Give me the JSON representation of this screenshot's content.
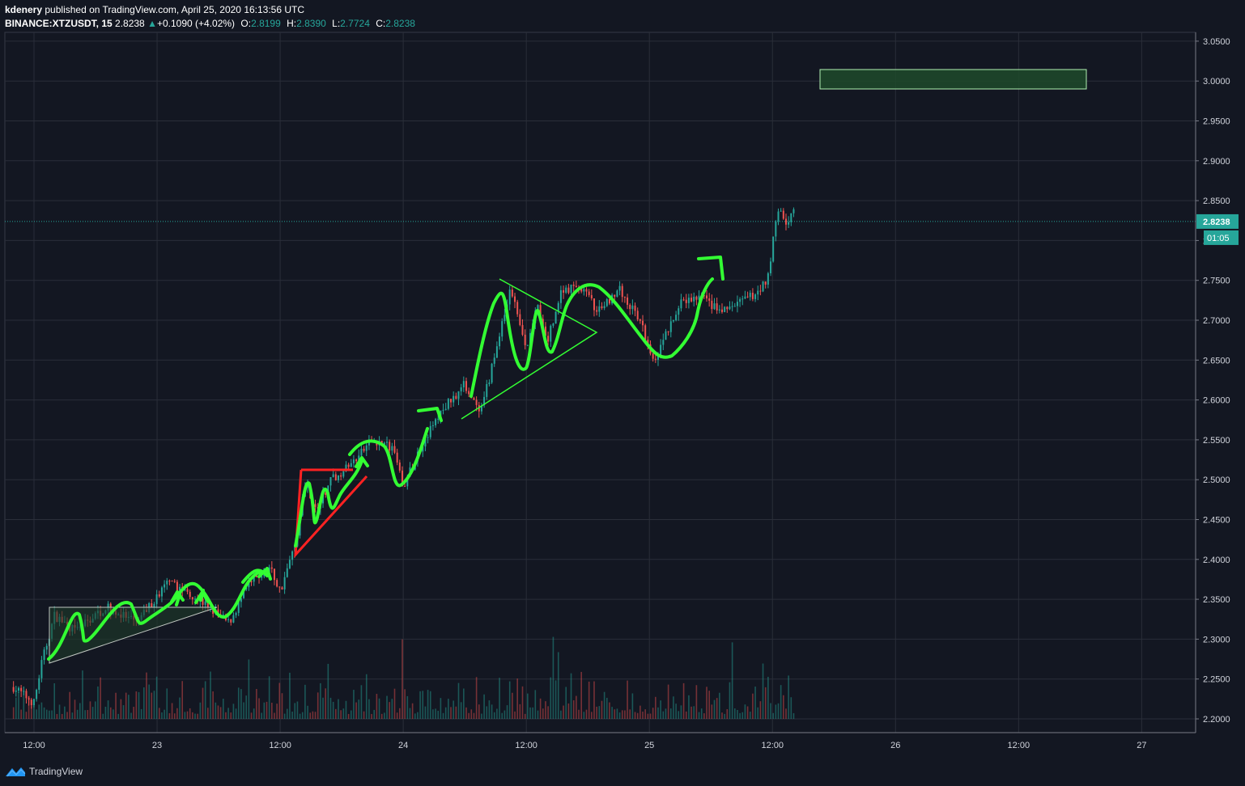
{
  "header": {
    "author": "kdenery",
    "published_text": "published on TradingView.com, April 25, 2020 16:13:56 UTC",
    "symbol": "BINANCE:XTZUSDT, 15",
    "last": "2.8238",
    "change_arrow": "▲",
    "change": "+0.1090 (+4.02%)",
    "o_label": "O:",
    "o": "2.8199",
    "h_label": "H:",
    "h": "2.8390",
    "l_label": "L:",
    "l": "2.7724",
    "c_label": "C:",
    "c": "2.8238"
  },
  "footer": {
    "brand": "TradingView",
    "logo_icon": "tradingview-logo-icon"
  },
  "colors": {
    "background": "#131722",
    "grid": "#2a2e39",
    "up": "#26a69a",
    "down": "#ef5350",
    "drawing_green": "#33ff33",
    "drawing_red": "#ff2222",
    "text": "#d1d4dc"
  },
  "chart_data": {
    "type": "candlestick",
    "ylim": [
      2.18,
      3.06
    ],
    "y_ticks": [
      "3.0500",
      "3.0000",
      "2.9500",
      "2.9000",
      "2.8500",
      "2.8000",
      "2.7500",
      "2.7000",
      "2.6500",
      "2.6000",
      "2.5500",
      "2.5000",
      "2.4500",
      "2.4000",
      "2.3500",
      "2.3000",
      "2.2500",
      "2.2000"
    ],
    "x_ticks": [
      "12:00",
      "23",
      "12:00",
      "24",
      "12:00",
      "25",
      "12:00",
      "26",
      "12:00",
      "27"
    ],
    "x_tick_times": [
      "2020-04-22 12:00",
      "2020-04-23 00:00",
      "2020-04-23 12:00",
      "2020-04-24 00:00",
      "2020-04-24 12:00",
      "2020-04-25 00:00",
      "2020-04-25 12:00",
      "2020-04-26 00:00",
      "2020-04-26 12:00",
      "2020-04-27 00:00"
    ],
    "current_price": "2.8238",
    "countdown": "01:05",
    "price_path": [
      {
        "t": "2020-04-22 10:00",
        "p": 2.24
      },
      {
        "t": "2020-04-22 12:00",
        "p": 2.22
      },
      {
        "t": "2020-04-22 12:45",
        "p": 2.27
      },
      {
        "t": "2020-04-22 14:00",
        "p": 2.33
      },
      {
        "t": "2020-04-22 16:00",
        "p": 2.31
      },
      {
        "t": "2020-04-22 19:00",
        "p": 2.34
      },
      {
        "t": "2020-04-22 22:00",
        "p": 2.32
      },
      {
        "t": "2020-04-23 01:00",
        "p": 2.37
      },
      {
        "t": "2020-04-23 03:00",
        "p": 2.36
      },
      {
        "t": "2020-04-23 05:00",
        "p": 2.34
      },
      {
        "t": "2020-04-23 07:00",
        "p": 2.32
      },
      {
        "t": "2020-04-23 09:00",
        "p": 2.37
      },
      {
        "t": "2020-04-23 11:00",
        "p": 2.39
      },
      {
        "t": "2020-04-23 12:00",
        "p": 2.36
      },
      {
        "t": "2020-04-23 13:30",
        "p": 2.42
      },
      {
        "t": "2020-04-23 14:30",
        "p": 2.5
      },
      {
        "t": "2020-04-23 15:30",
        "p": 2.46
      },
      {
        "t": "2020-04-23 17:00",
        "p": 2.5
      },
      {
        "t": "2020-04-23 19:00",
        "p": 2.52
      },
      {
        "t": "2020-04-23 21:00",
        "p": 2.55
      },
      {
        "t": "2020-04-23 23:00",
        "p": 2.54
      },
      {
        "t": "2020-04-24 00:00",
        "p": 2.49
      },
      {
        "t": "2020-04-24 02:00",
        "p": 2.55
      },
      {
        "t": "2020-04-24 04:00",
        "p": 2.59
      },
      {
        "t": "2020-04-24 06:00",
        "p": 2.62
      },
      {
        "t": "2020-04-24 07:30",
        "p": 2.58
      },
      {
        "t": "2020-04-24 09:00",
        "p": 2.66
      },
      {
        "t": "2020-04-24 10:30",
        "p": 2.74
      },
      {
        "t": "2020-04-24 12:00",
        "p": 2.66
      },
      {
        "t": "2020-04-24 13:00",
        "p": 2.72
      },
      {
        "t": "2020-04-24 14:00",
        "p": 2.67
      },
      {
        "t": "2020-04-24 15:30",
        "p": 2.74
      },
      {
        "t": "2020-04-24 17:30",
        "p": 2.74
      },
      {
        "t": "2020-04-24 19:00",
        "p": 2.71
      },
      {
        "t": "2020-04-24 21:00",
        "p": 2.74
      },
      {
        "t": "2020-04-24 23:00",
        "p": 2.7
      },
      {
        "t": "2020-04-25 00:30",
        "p": 2.65
      },
      {
        "t": "2020-04-25 03:00",
        "p": 2.72
      },
      {
        "t": "2020-04-25 05:00",
        "p": 2.73
      },
      {
        "t": "2020-04-25 07:00",
        "p": 2.71
      },
      {
        "t": "2020-04-25 10:00",
        "p": 2.73
      },
      {
        "t": "2020-04-25 11:30",
        "p": 2.75
      },
      {
        "t": "2020-04-25 12:30",
        "p": 2.84
      },
      {
        "t": "2020-04-25 13:30",
        "p": 2.82
      },
      {
        "t": "2020-04-25 14:00",
        "p": 2.84
      },
      {
        "t": "2020-04-25 14:15",
        "p": 2.8238
      }
    ]
  }
}
